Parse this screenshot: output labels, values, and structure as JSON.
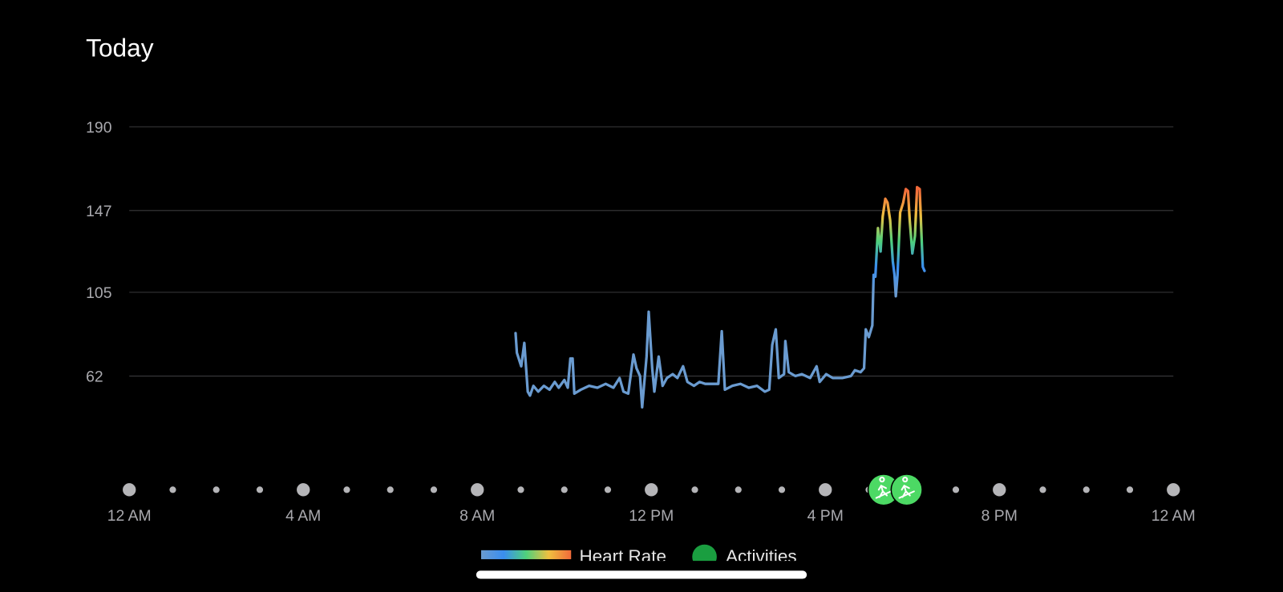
{
  "chart_data": {
    "type": "line",
    "title": "Today",
    "x": [
      8.88,
      8.91,
      9.01,
      9.08,
      9.16,
      9.21,
      9.29,
      9.4,
      9.53,
      9.66,
      9.78,
      9.87,
      10.0,
      10.08,
      10.14,
      10.19,
      10.23,
      10.38,
      10.57,
      10.76,
      10.95,
      11.13,
      11.27,
      11.36,
      11.47,
      11.59,
      11.66,
      11.74,
      11.79,
      11.89,
      11.94,
      12.02,
      12.07,
      12.17,
      12.26,
      12.36,
      12.49,
      12.6,
      12.73,
      12.83,
      12.98,
      13.11,
      13.24,
      13.39,
      13.54,
      13.62,
      13.69,
      13.86,
      14.05,
      14.24,
      14.43,
      14.61,
      14.71,
      14.78,
      14.86,
      14.93,
      15.05,
      15.08,
      15.16,
      15.31,
      15.46,
      15.65,
      15.8,
      15.87,
      16.02,
      16.17,
      16.4,
      16.59,
      16.68,
      16.81,
      16.89,
      16.93,
      17.0,
      17.08,
      17.11,
      17.15,
      17.21,
      17.27,
      17.32,
      17.38,
      17.43,
      17.49,
      17.55,
      17.59,
      17.62,
      17.66,
      17.72,
      17.79,
      17.85,
      17.9,
      17.94,
      18.0,
      18.06,
      18.11,
      18.17,
      18.21,
      18.24,
      18.28
    ],
    "series": [
      {
        "name": "Heart Rate",
        "colors": [
          "#6a9bd0",
          "#3a8ef0",
          "#4ed07c",
          "#f0c040",
          "#f06a3a"
        ],
        "values": [
          84,
          74,
          67,
          79,
          54,
          52,
          57,
          54,
          57,
          55,
          59,
          56,
          60,
          56,
          71,
          71,
          53,
          55,
          57,
          56,
          58,
          56,
          61,
          54,
          53,
          73,
          66,
          62,
          46,
          72,
          95,
          66,
          54,
          72,
          57,
          61,
          63,
          61,
          67,
          59,
          57,
          59,
          58,
          58,
          58,
          85,
          55,
          57,
          58,
          56,
          57,
          54,
          55,
          78,
          86,
          61,
          63,
          80,
          64,
          62,
          63,
          61,
          67,
          59,
          63,
          61,
          61,
          62,
          65,
          64,
          66,
          86,
          82,
          88,
          114,
          113,
          138,
          126,
          144,
          153,
          151,
          142,
          121,
          114,
          103,
          114,
          146,
          151,
          158,
          157,
          142,
          125,
          134,
          159,
          158,
          134,
          118,
          116
        ]
      }
    ],
    "activities": {
      "name": "Activities",
      "x": [
        17.34,
        17.87
      ],
      "color": "#4cd964",
      "legend_color": "#1a9e40"
    },
    "xlim": [
      0,
      24
    ],
    "xticks": [
      {
        "value": 0,
        "label": "12 AM"
      },
      {
        "value": 4,
        "label": "4 AM"
      },
      {
        "value": 8,
        "label": "8 AM"
      },
      {
        "value": 12,
        "label": "12 PM"
      },
      {
        "value": 16,
        "label": "4 PM"
      },
      {
        "value": 20,
        "label": "8 PM"
      },
      {
        "value": 24,
        "label": "12 AM"
      }
    ],
    "xminor": [
      1,
      2,
      3,
      5,
      6,
      7,
      9,
      10,
      11,
      13,
      14,
      15,
      17,
      18,
      19,
      21,
      22,
      23
    ],
    "ylim": [
      20,
      190
    ],
    "yticks": [
      62,
      105,
      147,
      190
    ],
    "grid": true
  }
}
